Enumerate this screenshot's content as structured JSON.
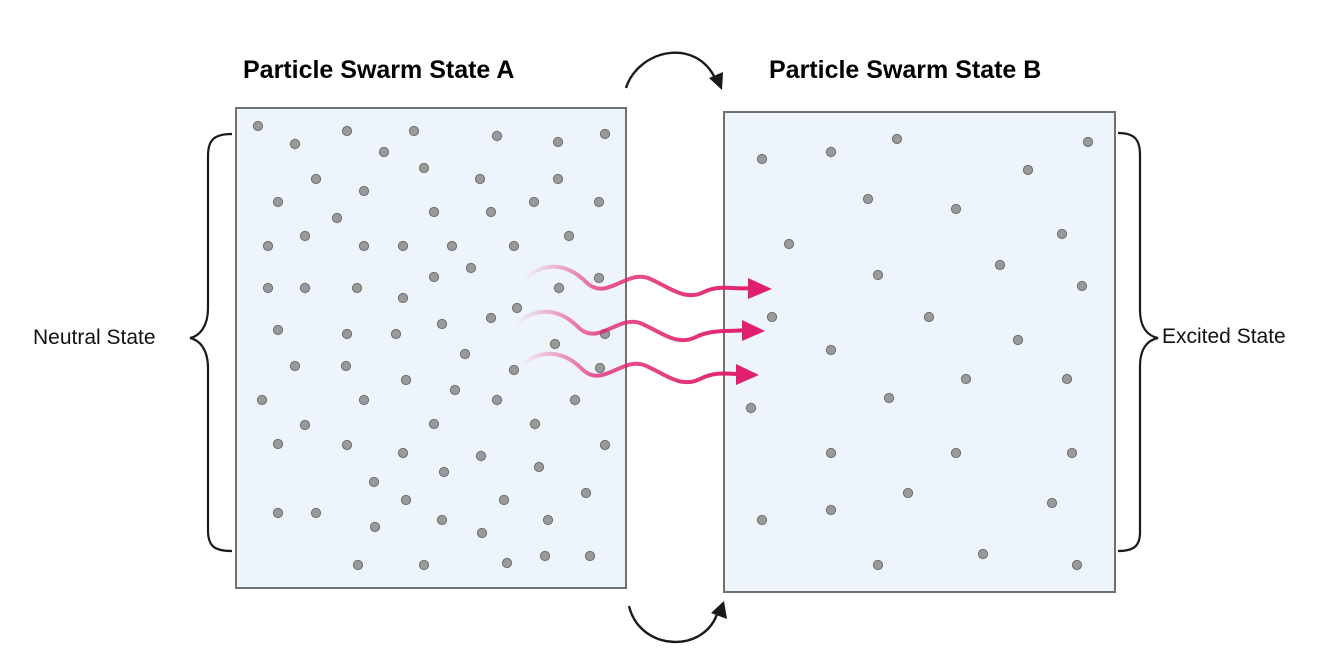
{
  "titles": {
    "state_a": "Particle Swarm State A",
    "state_b": "Particle Swarm State B"
  },
  "labels": {
    "left": "Neutral State",
    "right": "Excited State"
  },
  "colors": {
    "panel_fill": "#eef4fc",
    "panel_stroke": "#707070",
    "particle_fill": "#9a9a9a",
    "particle_stroke": "#6e6e6e",
    "wave_arrow": "#e0206e",
    "bracket": "#1a1a1a"
  },
  "icons": {
    "top_cycle": "curved-arrow-right-icon",
    "bottom_cycle": "curved-arrow-up-icon",
    "waves": "wavy-arrow-icon"
  }
}
